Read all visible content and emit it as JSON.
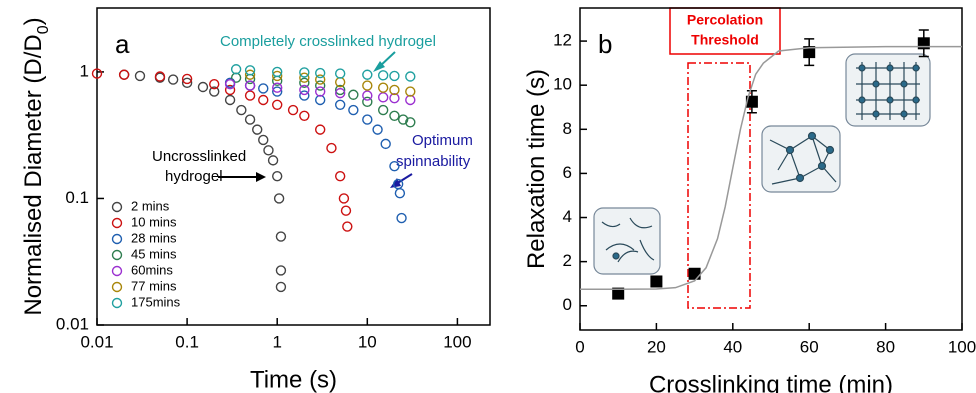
{
  "chart_data": [
    {
      "type": "scatter",
      "panel_label": "a",
      "x_label": "Time (s)",
      "y_label": [
        "Normalised Diameter (D/D",
        "0",
        ")"
      ],
      "x_log": true,
      "y_log": true,
      "xlim": [
        0.01,
        230
      ],
      "ylim": [
        0.01,
        3.2
      ],
      "xticks": [
        0.01,
        0.1,
        1,
        10,
        100
      ],
      "yticks": [
        0.01,
        0.1,
        1
      ],
      "legend": "lower left",
      "series": [
        {
          "name": "2  mins",
          "color": "#444444",
          "x": [
            0.02,
            0.03,
            0.05,
            0.07,
            0.1,
            0.15,
            0.2,
            0.3,
            0.4,
            0.5,
            0.6,
            0.7,
            0.8,
            0.9,
            1.0,
            1.05,
            1.1,
            1.1,
            1.1
          ],
          "values": [
            0.95,
            0.93,
            0.9,
            0.87,
            0.82,
            0.76,
            0.7,
            0.6,
            0.5,
            0.42,
            0.35,
            0.29,
            0.24,
            0.2,
            0.15,
            0.1,
            0.05,
            0.027,
            0.02
          ]
        },
        {
          "name": "10 mins",
          "color": "#cc1111",
          "x": [
            0.01,
            0.02,
            0.05,
            0.1,
            0.2,
            0.3,
            0.5,
            0.7,
            1,
            1.5,
            2,
            3,
            4,
            5,
            5.5,
            5.8,
            6
          ],
          "values": [
            0.97,
            0.95,
            0.92,
            0.88,
            0.8,
            0.72,
            0.65,
            0.6,
            0.55,
            0.5,
            0.45,
            0.35,
            0.25,
            0.15,
            0.1,
            0.08,
            0.06
          ]
        },
        {
          "name": "28 mins",
          "color": "#1f5fb0",
          "x": [
            0.3,
            0.5,
            0.7,
            1,
            2,
            3,
            5,
            7,
            10,
            13,
            16,
            20,
            22,
            23,
            24
          ],
          "values": [
            0.82,
            0.78,
            0.74,
            0.7,
            0.65,
            0.6,
            0.55,
            0.5,
            0.42,
            0.35,
            0.27,
            0.18,
            0.13,
            0.11,
            0.07
          ]
        },
        {
          "name": "45 mins",
          "color": "#2e7d4f",
          "x": [
            0.35,
            0.5,
            1,
            2,
            3,
            5,
            7,
            10,
            15,
            20,
            25,
            30
          ],
          "values": [
            0.9,
            0.88,
            0.85,
            0.82,
            0.78,
            0.72,
            0.66,
            0.58,
            0.5,
            0.45,
            0.42,
            0.4
          ]
        },
        {
          "name": "60mins",
          "color": "#9b30d0",
          "x": [
            0.3,
            0.5,
            1,
            2,
            3,
            5,
            10,
            15,
            20,
            30
          ],
          "values": [
            0.8,
            0.78,
            0.75,
            0.72,
            0.7,
            0.68,
            0.65,
            0.63,
            0.62,
            0.6
          ]
        },
        {
          "name": "77 mins",
          "color": "#a8860a",
          "x": [
            0.5,
            1,
            2,
            3,
            5,
            10,
            15,
            20,
            30
          ],
          "values": [
            0.95,
            0.93,
            0.9,
            0.87,
            0.83,
            0.78,
            0.75,
            0.72,
            0.7
          ]
        },
        {
          "name": "175mins",
          "color": "#20a0a0",
          "x": [
            0.35,
            0.5,
            1,
            2,
            3,
            5,
            10,
            15,
            20,
            30
          ],
          "values": [
            1.05,
            1.03,
            1.0,
            0.99,
            0.98,
            0.97,
            0.95,
            0.94,
            0.93,
            0.92
          ]
        }
      ],
      "annotations": [
        "Completely crosslinked hydrogel",
        "Uncrosslinked",
        "hydrogel",
        "Optimum",
        "spinnability"
      ]
    },
    {
      "type": "scatter",
      "panel_label": "b",
      "x_label": "Crosslinking time (min)",
      "y_label": [
        "Relaxation time (s)"
      ],
      "x_log": false,
      "y_log": false,
      "xlim": [
        0,
        100
      ],
      "ylim": [
        -1.1,
        13.5
      ],
      "xticks": [
        0,
        20,
        40,
        60,
        80,
        100
      ],
      "yticks": [
        0,
        2,
        4,
        6,
        8,
        10,
        12
      ],
      "series": [
        {
          "color": "#000000",
          "style": "square",
          "x": [
            10,
            20,
            30,
            45,
            60,
            90
          ],
          "values": [
            0.55,
            1.1,
            1.45,
            9.25,
            11.5,
            11.9
          ],
          "errors": [
            0.1,
            0.1,
            0.1,
            0.5,
            0.6,
            0.6
          ]
        },
        {
          "color": "#999999",
          "style": "line",
          "x": [
            0,
            10,
            20,
            25,
            30,
            33,
            36,
            38,
            40,
            42,
            44,
            46,
            48,
            52,
            60,
            80,
            100
          ],
          "values": [
            0.75,
            0.75,
            0.76,
            0.82,
            1.13,
            1.72,
            3.04,
            4.48,
            6.25,
            8.0,
            9.46,
            10.5,
            11.0,
            11.55,
            11.7,
            11.75,
            11.75
          ]
        }
      ],
      "annotations": [
        "Percolation",
        "Threshold"
      ]
    }
  ]
}
